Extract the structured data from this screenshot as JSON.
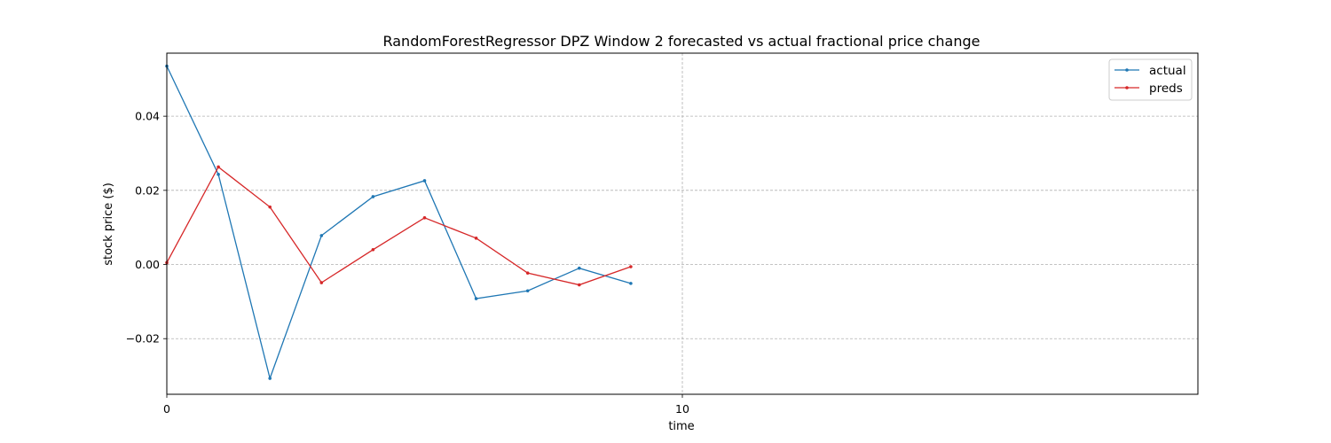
{
  "chart_data": {
    "type": "line",
    "title": "RandomForestRegressor DPZ Window 2 forecasted vs actual fractional price change",
    "xlabel": "time",
    "ylabel": "stock price ($)",
    "xlim": [
      0,
      20
    ],
    "ylim": [
      -0.035,
      0.057
    ],
    "x_ticks": [
      0,
      10
    ],
    "x_tick_labels": [
      "0",
      "10"
    ],
    "y_ticks": [
      -0.02,
      0.0,
      0.02,
      0.04
    ],
    "y_tick_labels": [
      "−0.02",
      "0.00",
      "0.02",
      "0.04"
    ],
    "grid": true,
    "legend_position": "top-right",
    "x": [
      0,
      1,
      2,
      3,
      4,
      5,
      6,
      7,
      8,
      9
    ],
    "series": [
      {
        "name": "actual",
        "color": "#1f77b4",
        "values": [
          0.0535,
          0.0243,
          -0.0307,
          0.0078,
          0.0183,
          0.0226,
          -0.0092,
          -0.0071,
          -0.001,
          -0.0051
        ]
      },
      {
        "name": "preds",
        "color": "#d62728",
        "values": [
          0.0005,
          0.0263,
          0.0155,
          -0.0049,
          0.004,
          0.0126,
          0.0071,
          -0.0023,
          -0.0055,
          -0.0006
        ]
      }
    ]
  }
}
